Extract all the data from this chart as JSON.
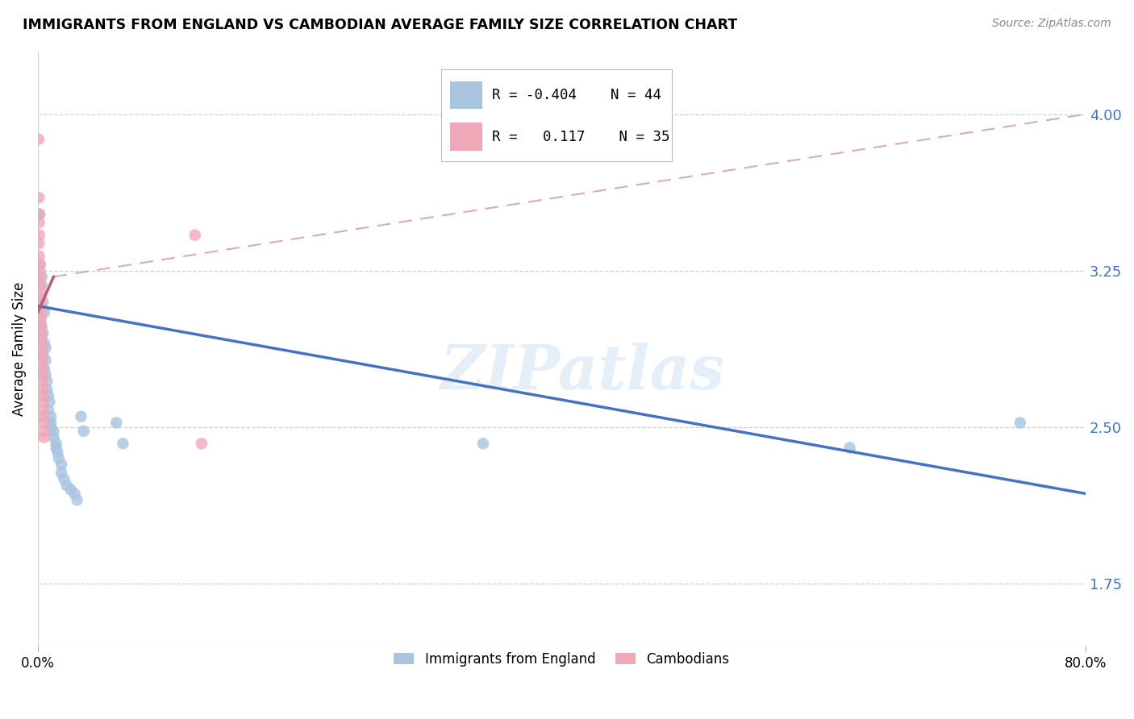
{
  "title": "IMMIGRANTS FROM ENGLAND VS CAMBODIAN AVERAGE FAMILY SIZE CORRELATION CHART",
  "source": "Source: ZipAtlas.com",
  "ylabel": "Average Family Size",
  "yticks": [
    1.75,
    2.5,
    3.25,
    4.0
  ],
  "xlim": [
    0.0,
    0.8
  ],
  "ylim": [
    1.45,
    4.3
  ],
  "background_color": "#ffffff",
  "watermark": "ZIPatlas",
  "legend": {
    "blue_R": "-0.404",
    "blue_N": "44",
    "pink_R": "0.117",
    "pink_N": "35"
  },
  "blue_scatter": [
    [
      0.0015,
      3.52
    ],
    [
      0.002,
      3.28
    ],
    [
      0.003,
      3.22
    ],
    [
      0.003,
      3.18
    ],
    [
      0.004,
      3.1
    ],
    [
      0.005,
      3.05
    ],
    [
      0.002,
      3.0
    ],
    [
      0.003,
      2.98
    ],
    [
      0.004,
      2.95
    ],
    [
      0.003,
      2.92
    ],
    [
      0.005,
      2.9
    ],
    [
      0.006,
      2.88
    ],
    [
      0.004,
      2.85
    ],
    [
      0.006,
      2.82
    ],
    [
      0.005,
      2.78
    ],
    [
      0.006,
      2.75
    ],
    [
      0.007,
      2.72
    ],
    [
      0.007,
      2.68
    ],
    [
      0.008,
      2.65
    ],
    [
      0.009,
      2.62
    ],
    [
      0.008,
      2.58
    ],
    [
      0.01,
      2.55
    ],
    [
      0.01,
      2.52
    ],
    [
      0.01,
      2.5
    ],
    [
      0.012,
      2.48
    ],
    [
      0.012,
      2.45
    ],
    [
      0.014,
      2.42
    ],
    [
      0.014,
      2.4
    ],
    [
      0.015,
      2.38
    ],
    [
      0.016,
      2.35
    ],
    [
      0.018,
      2.32
    ],
    [
      0.018,
      2.28
    ],
    [
      0.02,
      2.25
    ],
    [
      0.022,
      2.22
    ],
    [
      0.025,
      2.2
    ],
    [
      0.028,
      2.18
    ],
    [
      0.03,
      2.15
    ],
    [
      0.033,
      2.55
    ],
    [
      0.035,
      2.48
    ],
    [
      0.06,
      2.52
    ],
    [
      0.065,
      2.42
    ],
    [
      0.34,
      2.42
    ],
    [
      0.62,
      2.4
    ],
    [
      0.75,
      2.52
    ]
  ],
  "pink_scatter": [
    [
      0.0005,
      3.88
    ],
    [
      0.0008,
      3.6
    ],
    [
      0.001,
      3.52
    ],
    [
      0.001,
      3.48
    ],
    [
      0.0012,
      3.42
    ],
    [
      0.0008,
      3.38
    ],
    [
      0.001,
      3.32
    ],
    [
      0.0012,
      3.28
    ],
    [
      0.0015,
      3.25
    ],
    [
      0.0015,
      3.22
    ],
    [
      0.0018,
      3.18
    ],
    [
      0.002,
      3.15
    ],
    [
      0.002,
      3.12
    ],
    [
      0.0022,
      3.08
    ],
    [
      0.0022,
      3.05
    ],
    [
      0.0025,
      3.02
    ],
    [
      0.0025,
      2.98
    ],
    [
      0.0028,
      2.95
    ],
    [
      0.0028,
      2.92
    ],
    [
      0.003,
      2.88
    ],
    [
      0.003,
      2.85
    ],
    [
      0.0032,
      2.82
    ],
    [
      0.0032,
      2.78
    ],
    [
      0.0035,
      2.75
    ],
    [
      0.0035,
      2.72
    ],
    [
      0.0038,
      2.68
    ],
    [
      0.0038,
      2.65
    ],
    [
      0.004,
      2.62
    ],
    [
      0.004,
      2.58
    ],
    [
      0.0042,
      2.55
    ],
    [
      0.0042,
      2.52
    ],
    [
      0.0045,
      2.48
    ],
    [
      0.0045,
      2.45
    ],
    [
      0.12,
      3.42
    ],
    [
      0.125,
      2.42
    ]
  ],
  "blue_color": "#a8c4e0",
  "pink_color": "#f0a8b8",
  "blue_line_color": "#4472c4",
  "pink_line_color": "#c05878",
  "pink_dash_color": "#d09098",
  "grid_color": "#d0d0d0"
}
